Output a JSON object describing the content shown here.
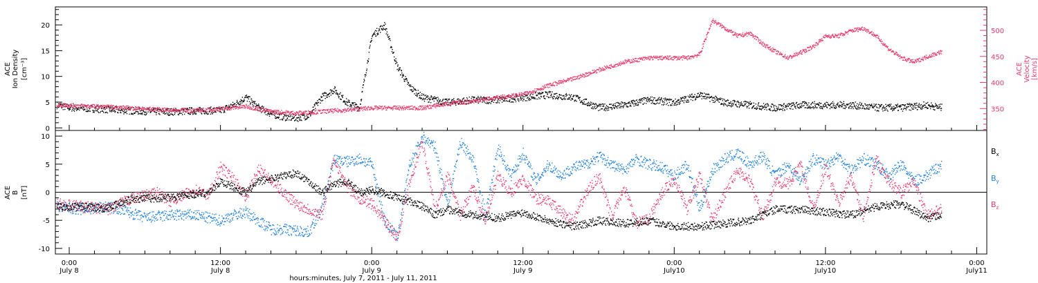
{
  "colors": {
    "axis": "#000000",
    "density": "#000000",
    "velocity": "#e83a6b",
    "bx": "#000000",
    "by": "#1e7fd8",
    "bz": "#e83a6b"
  },
  "x_axis": {
    "title": "hours:minutes, July  7, 2011 - July 11, 2011",
    "unit": "hours since 2011-07-07 00:00",
    "range": [
      22.9,
      96.8
    ],
    "ticks": [
      {
        "t": 24,
        "time": "0:00",
        "date": "July 8"
      },
      {
        "t": 36,
        "time": "12:00",
        "date": "July 8"
      },
      {
        "t": 48,
        "time": "0:00",
        "date": "July 9"
      },
      {
        "t": 60,
        "time": "12:00",
        "date": "July 9"
      },
      {
        "t": 72,
        "time": "0:00",
        "date": "July10"
      },
      {
        "t": 84,
        "time": "12:00",
        "date": "July10"
      },
      {
        "t": 96,
        "time": "0:00",
        "date": "July11"
      }
    ]
  },
  "top_panel": {
    "left_label": [
      "ACE",
      "Ion Density",
      "[cm⁻³]"
    ],
    "right_label": [
      "ACE",
      "Velocity",
      "[km/s]"
    ],
    "left_range": [
      -0.5,
      23.5
    ],
    "left_ticks": [
      "0",
      "5",
      "10",
      "15",
      "20"
    ],
    "right_range": [
      308,
      545
    ],
    "right_ticks": [
      "350",
      "400",
      "450",
      "500"
    ]
  },
  "bottom_panel": {
    "label": [
      "ACE",
      "B",
      "[nT]"
    ],
    "range": [
      -11,
      11
    ],
    "ticks": [
      "-10",
      "-5",
      "0",
      "5",
      "10"
    ],
    "legend": {
      "bx": {
        "base": "B",
        "sub": "x"
      },
      "by": {
        "base": "B",
        "sub": "y"
      },
      "bz": {
        "base": "B",
        "sub": "z"
      }
    }
  },
  "chart_data": [
    {
      "type": "scatter",
      "title": "",
      "xlabel": "hours:minutes, July  7, 2011 - July 11, 2011",
      "ylabel": "ACE Ion Density [cm⁻³]",
      "y2label": "ACE Velocity [km/s]",
      "series": [
        {
          "name": "Ion Density",
          "axis": "left",
          "color": "#000000",
          "x": [
            23,
            24,
            26,
            28,
            30,
            32,
            34,
            36,
            37,
            38,
            39,
            40,
            41,
            42,
            43,
            44,
            45,
            46,
            47,
            48,
            49,
            50,
            51,
            52,
            54,
            56,
            58,
            60,
            62,
            64,
            66,
            68,
            70,
            72,
            74,
            76,
            78,
            80,
            82,
            84,
            86,
            88,
            90,
            92,
            93.2
          ],
          "y": [
            4.5,
            4.0,
            3.8,
            3.5,
            3.3,
            3.2,
            3.4,
            3.5,
            4.5,
            6.0,
            4.0,
            2.8,
            2.2,
            2.0,
            2.5,
            6.0,
            7.5,
            5.0,
            4.0,
            18.0,
            20.0,
            12.0,
            8.0,
            6.0,
            5.0,
            5.5,
            5.5,
            6.0,
            6.5,
            6.0,
            4.0,
            4.5,
            5.5,
            5.0,
            6.5,
            5.0,
            4.5,
            4.0,
            4.5,
            4.5,
            4.5,
            4.0,
            4.0,
            4.5,
            4.0
          ]
        },
        {
          "name": "Velocity",
          "axis": "right",
          "color": "#e83a6b",
          "x": [
            23,
            24,
            26,
            28,
            30,
            32,
            34,
            36,
            38,
            40,
            42,
            44,
            46,
            48,
            50,
            52,
            54,
            56,
            58,
            60,
            62,
            64,
            66,
            68,
            70,
            72,
            73,
            74,
            75,
            76,
            77,
            78,
            79,
            80,
            81,
            82,
            83,
            84,
            85,
            86,
            87,
            88,
            89,
            90,
            91,
            92,
            93.2
          ],
          "y": [
            358,
            357,
            355,
            353,
            350,
            348,
            347,
            350,
            355,
            345,
            342,
            345,
            348,
            352,
            352,
            352,
            360,
            365,
            372,
            378,
            395,
            408,
            425,
            440,
            448,
            448,
            448,
            455,
            520,
            505,
            490,
            495,
            475,
            460,
            448,
            458,
            470,
            490,
            490,
            500,
            505,
            490,
            465,
            448,
            440,
            450,
            460
          ]
        }
      ]
    },
    {
      "type": "scatter",
      "title": "",
      "xlabel": "hours:minutes, July  7, 2011 - July 11, 2011",
      "ylabel": "ACE B [nT]",
      "series": [
        {
          "name": "Bx",
          "color": "#000000",
          "x": [
            23,
            25,
            27,
            29,
            31,
            33,
            35,
            36,
            37,
            38,
            39,
            40,
            41,
            42,
            43,
            44,
            45,
            46,
            47,
            48,
            49,
            50,
            51,
            52,
            53,
            54,
            56,
            58,
            60,
            62,
            64,
            66,
            68,
            70,
            72,
            74,
            76,
            78,
            80,
            82,
            84,
            86,
            88,
            90,
            92,
            93.2
          ],
          "y": [
            -2.5,
            -2.5,
            -2.8,
            -1.0,
            -1.0,
            -0.5,
            0.0,
            2.0,
            1.0,
            0.0,
            2.0,
            2.5,
            3.0,
            3.5,
            2.0,
            0.0,
            1.5,
            2.0,
            0.0,
            0.5,
            0.0,
            -1.0,
            -1.5,
            -2.5,
            -4.0,
            -3.0,
            -4.0,
            -4.5,
            -3.5,
            -5.0,
            -6.0,
            -5.0,
            -5.5,
            -5.0,
            -6.0,
            -6.0,
            -5.5,
            -5.0,
            -3.0,
            -3.0,
            -3.5,
            -4.0,
            -2.5,
            -2.0,
            -4.5,
            -4.0
          ]
        },
        {
          "name": "By",
          "color": "#1e7fd8",
          "x": [
            23,
            25,
            27,
            28,
            30,
            32,
            34,
            35,
            36,
            37,
            38,
            39,
            40,
            41,
            42,
            43,
            44,
            45,
            46,
            47,
            48,
            49,
            50,
            51,
            52,
            53,
            54,
            55,
            56,
            57,
            58,
            59,
            60,
            61,
            62,
            63,
            64,
            65,
            66,
            67,
            68,
            69,
            70,
            71,
            72,
            73,
            74,
            75,
            76,
            77,
            78,
            79,
            80,
            81,
            82,
            83,
            84,
            85,
            86,
            87,
            88,
            89,
            90,
            91,
            92,
            93.2
          ],
          "y": [
            -2.5,
            -3.0,
            -2.5,
            -3.0,
            -4.5,
            -4.0,
            -4.0,
            -4.5,
            -5.0,
            -4.0,
            -3.5,
            -5.0,
            -6.5,
            -6.5,
            -6.8,
            -7.0,
            -3.0,
            6.0,
            5.5,
            6.0,
            5.0,
            -5.0,
            -8.0,
            5.0,
            10.0,
            8.0,
            -2.0,
            9.0,
            6.0,
            -4.0,
            8.0,
            3.0,
            7.0,
            2.0,
            5.0,
            3.0,
            4.5,
            5.0,
            6.5,
            5.0,
            4.0,
            6.0,
            5.0,
            4.5,
            3.0,
            5.0,
            -3.0,
            4.0,
            6.0,
            7.0,
            5.0,
            6.5,
            3.0,
            5.0,
            2.0,
            6.0,
            5.0,
            6.5,
            4.0,
            6.0,
            5.0,
            3.0,
            5.0,
            2.0,
            3.0,
            5.0
          ]
        },
        {
          "name": "Bz",
          "color": "#e83a6b",
          "x": [
            23,
            25,
            27,
            29,
            30,
            31,
            32,
            33,
            34,
            35,
            36,
            37,
            38,
            39,
            40,
            41,
            42,
            43,
            44,
            45,
            46,
            47,
            48,
            49,
            50,
            51,
            52,
            53,
            54,
            55,
            56,
            57,
            58,
            59,
            60,
            61,
            62,
            63,
            64,
            65,
            66,
            67,
            68,
            69,
            70,
            71,
            72,
            73,
            74,
            75,
            76,
            77,
            78,
            79,
            80,
            81,
            82,
            83,
            84,
            85,
            86,
            87,
            88,
            89,
            90,
            91,
            92,
            93.2
          ],
          "y": [
            -2.0,
            -2.5,
            -3.0,
            -1.0,
            -0.5,
            0.0,
            -1.5,
            -0.5,
            0.5,
            -0.5,
            4.5,
            2.5,
            -1.0,
            4.5,
            2.0,
            0.0,
            -2.0,
            -3.0,
            -4.0,
            6.0,
            1.0,
            -1.0,
            -2.0,
            -5.0,
            -8.0,
            2.0,
            9.0,
            -3.0,
            3.0,
            -4.0,
            1.0,
            -5.0,
            3.0,
            0.0,
            2.5,
            -1.0,
            -1.5,
            -3.5,
            -5.0,
            0.0,
            3.0,
            -4.5,
            1.0,
            -5.5,
            -4.5,
            0.0,
            2.5,
            -3.0,
            3.0,
            -5.0,
            0.0,
            4.0,
            2.0,
            -4.5,
            2.0,
            1.5,
            5.0,
            -3.0,
            4.5,
            -2.0,
            3.0,
            -4.5,
            6.0,
            2.0,
            0.0,
            2.0,
            -4.0,
            -3.0
          ]
        }
      ]
    }
  ]
}
